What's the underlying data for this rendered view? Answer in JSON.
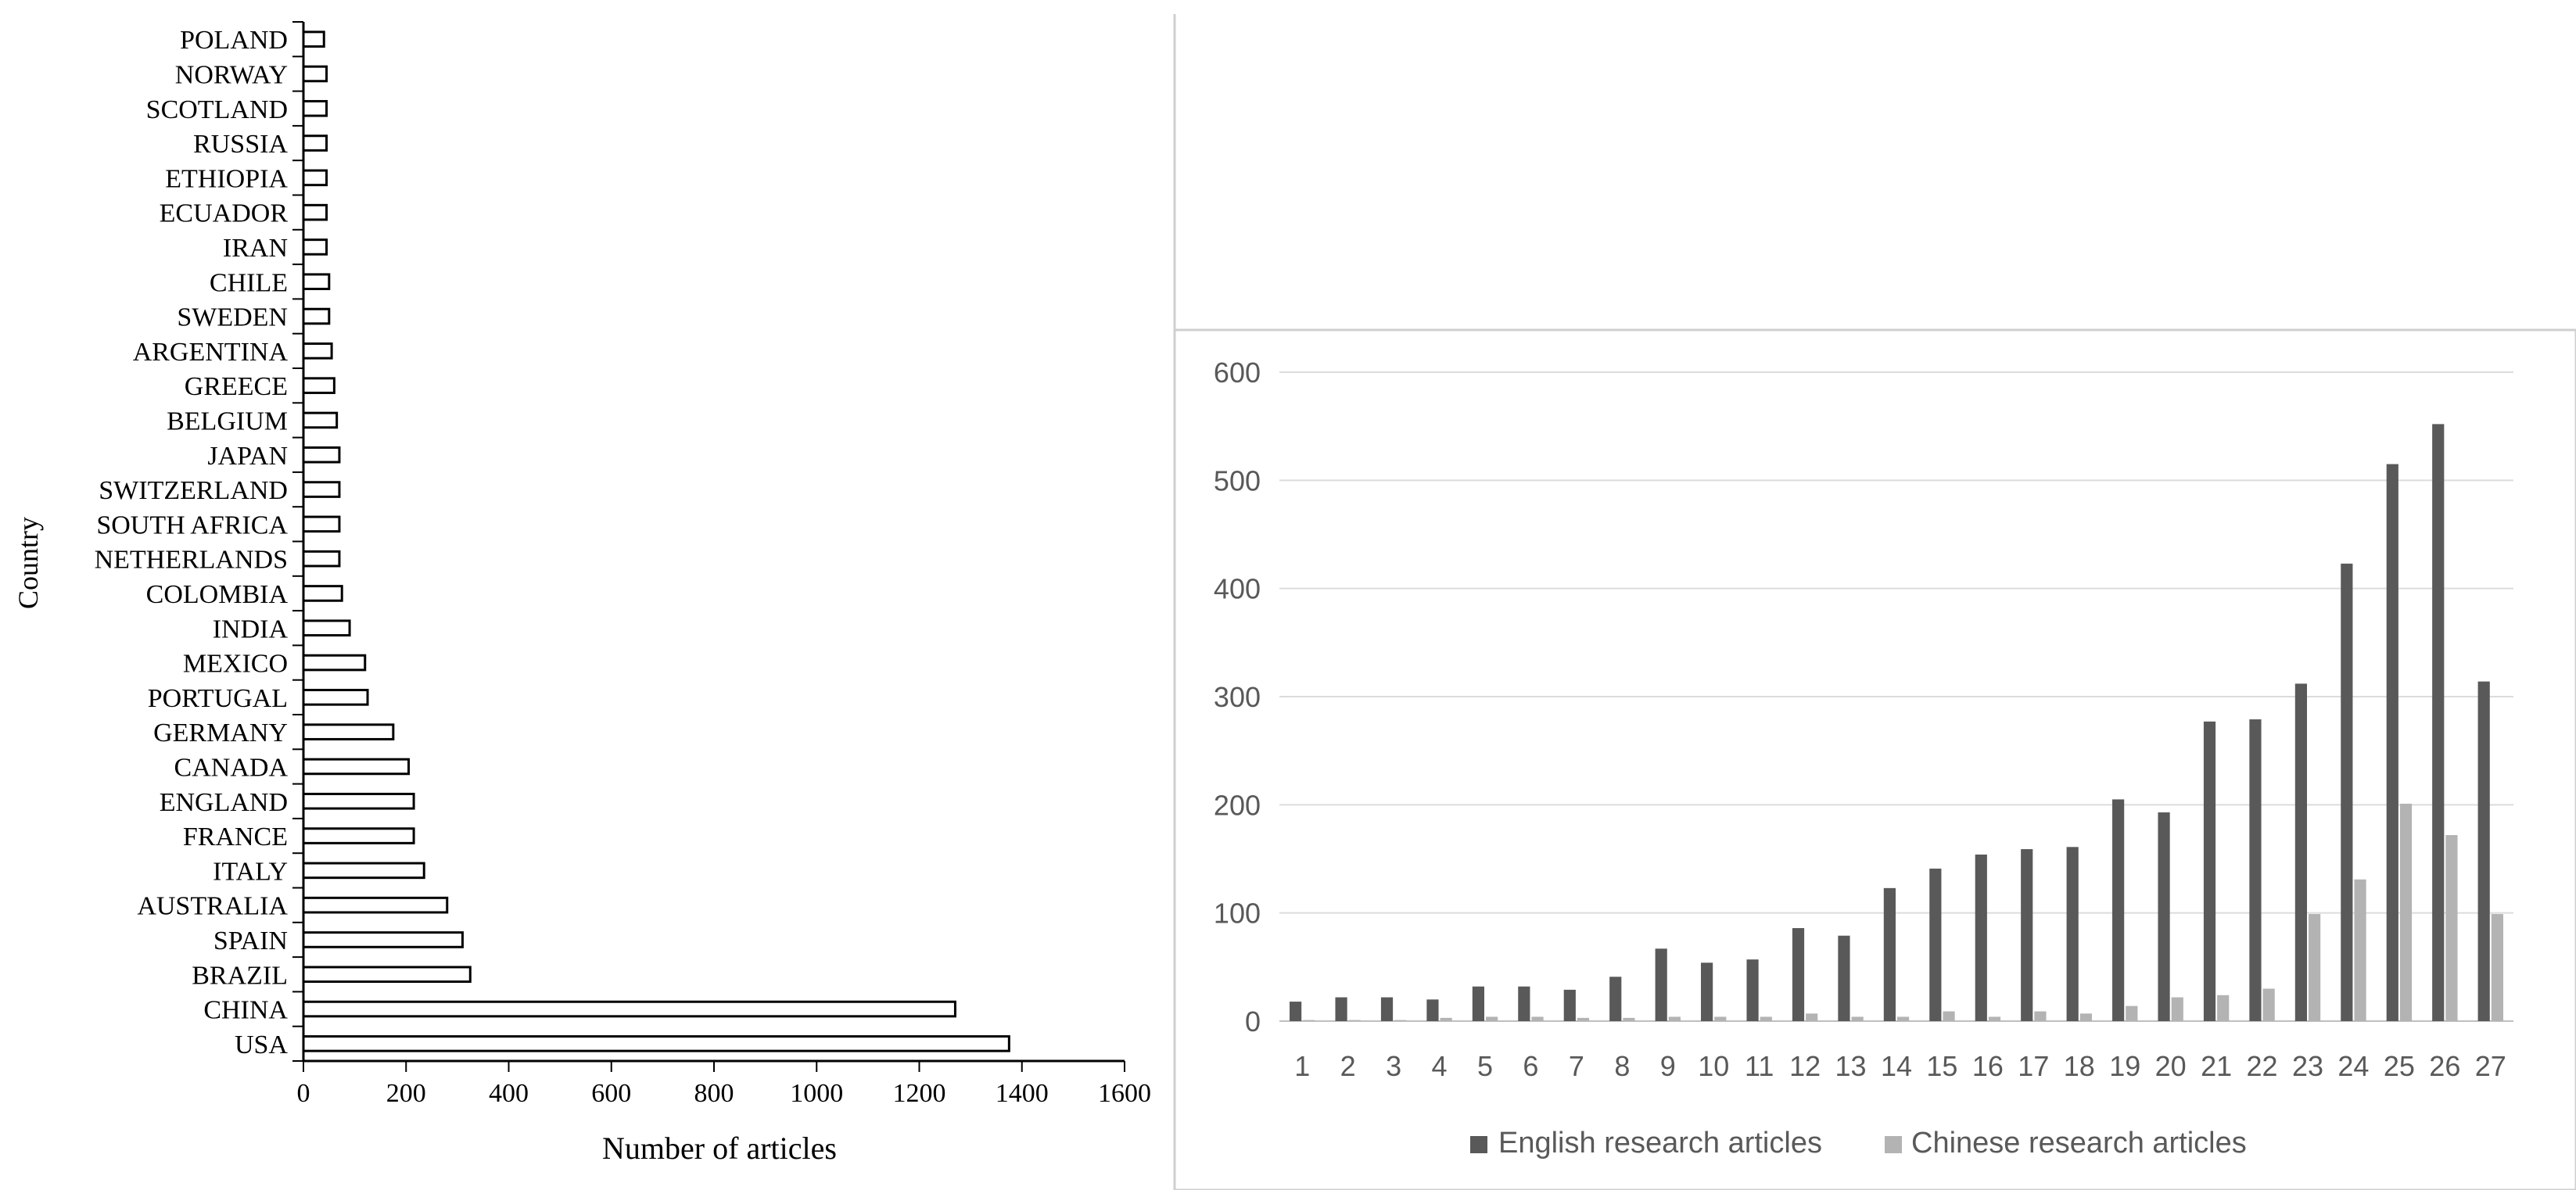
{
  "chart_data": [
    {
      "type": "bar",
      "orientation": "horizontal",
      "categories": [
        "USA",
        "CHINA",
        "BRAZIL",
        "SPAIN",
        "AUSTRALIA",
        "ITALY",
        "FRANCE",
        "ENGLAND",
        "CANADA",
        "GERMANY",
        "PORTUGAL",
        "MEXICO",
        "INDIA",
        "COLOMBIA",
        "NETHERLANDS",
        "SOUTH AFRICA",
        "SWITZERLAND",
        "JAPAN",
        "BELGIUM",
        "GREECE",
        "ARGENTINA",
        "SWEDEN",
        "CHILE",
        "IRAN",
        "ECUADOR",
        "ETHIOPIA",
        "RUSSIA",
        "SCOTLAND",
        "NORWAY",
        "POLAND"
      ],
      "values": [
        1375,
        1270,
        325,
        310,
        280,
        235,
        215,
        215,
        205,
        175,
        125,
        120,
        90,
        75,
        70,
        70,
        70,
        70,
        65,
        60,
        55,
        50,
        50,
        45,
        45,
        45,
        45,
        45,
        45,
        40
      ],
      "xlabel": "Number of articles",
      "ylabel": "Country",
      "xlim": [
        0,
        1600
      ],
      "xticks": [
        "0",
        "200",
        "400",
        "600",
        "800",
        "1000",
        "1200",
        "1400",
        "1600"
      ],
      "colors": {
        "bar_fill": "#ffffff",
        "bar_stroke": "#000000"
      }
    },
    {
      "type": "bar",
      "categories": [
        "1",
        "2",
        "3",
        "4",
        "5",
        "6",
        "7",
        "8",
        "9",
        "10",
        "11",
        "12",
        "13",
        "14",
        "15",
        "16",
        "17",
        "18",
        "19",
        "20",
        "21",
        "22",
        "23",
        "24",
        "25",
        "26",
        "27"
      ],
      "series": [
        {
          "name": "English research articles",
          "color": "#595959",
          "values": [
            18,
            22,
            22,
            20,
            32,
            32,
            29,
            41,
            67,
            54,
            57,
            86,
            79,
            123,
            141,
            154,
            159,
            161,
            205,
            193,
            277,
            279,
            312,
            423,
            515,
            552,
            314
          ]
        },
        {
          "name": "Chinese research articles",
          "color": "#b3b3b3",
          "values": [
            1,
            1,
            1,
            3,
            4,
            4,
            3,
            3,
            4,
            4,
            4,
            7,
            4,
            4,
            9,
            4,
            9,
            7,
            14,
            22,
            24,
            30,
            99,
            131,
            201,
            172,
            99
          ]
        }
      ],
      "ylim": [
        0,
        600
      ],
      "yticks": [
        "0",
        "100",
        "200",
        "300",
        "400",
        "500",
        "600"
      ],
      "grid": true,
      "legend": "bottom"
    }
  ]
}
